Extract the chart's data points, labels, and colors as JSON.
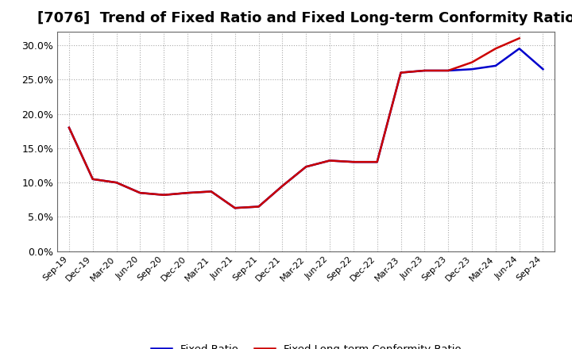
{
  "title": "[7076]  Trend of Fixed Ratio and Fixed Long-term Conformity Ratio",
  "x_labels": [
    "Sep-19",
    "Dec-19",
    "Mar-20",
    "Jun-20",
    "Sep-20",
    "Dec-20",
    "Mar-21",
    "Jun-21",
    "Sep-21",
    "Dec-21",
    "Mar-22",
    "Jun-22",
    "Sep-22",
    "Dec-22",
    "Mar-23",
    "Jun-23",
    "Sep-23",
    "Dec-23",
    "Mar-24",
    "Jun-24",
    "Sep-24"
  ],
  "fixed_ratio": [
    18.0,
    10.5,
    10.0,
    8.5,
    8.2,
    8.5,
    8.7,
    6.3,
    6.5,
    9.5,
    12.3,
    13.2,
    13.0,
    13.0,
    26.0,
    26.3,
    26.3,
    26.5,
    27.0,
    29.5,
    26.5
  ],
  "fixed_lt_ratio": [
    18.0,
    10.5,
    10.0,
    8.5,
    8.2,
    8.5,
    8.7,
    6.3,
    6.5,
    9.5,
    12.3,
    13.2,
    13.0,
    13.0,
    26.0,
    26.3,
    26.3,
    27.5,
    29.5,
    31.0,
    null
  ],
  "fixed_ratio_color": "#0000cc",
  "fixed_lt_ratio_color": "#cc0000",
  "ylim": [
    0.0,
    32.0
  ],
  "yticks": [
    0.0,
    5.0,
    10.0,
    15.0,
    20.0,
    25.0,
    30.0
  ],
  "background_color": "#ffffff",
  "plot_bg_color": "#ffffff",
  "grid_color": "#aaaaaa",
  "title_fontsize": 13,
  "legend_labels": [
    "Fixed Ratio",
    "Fixed Long-term Conformity Ratio"
  ]
}
